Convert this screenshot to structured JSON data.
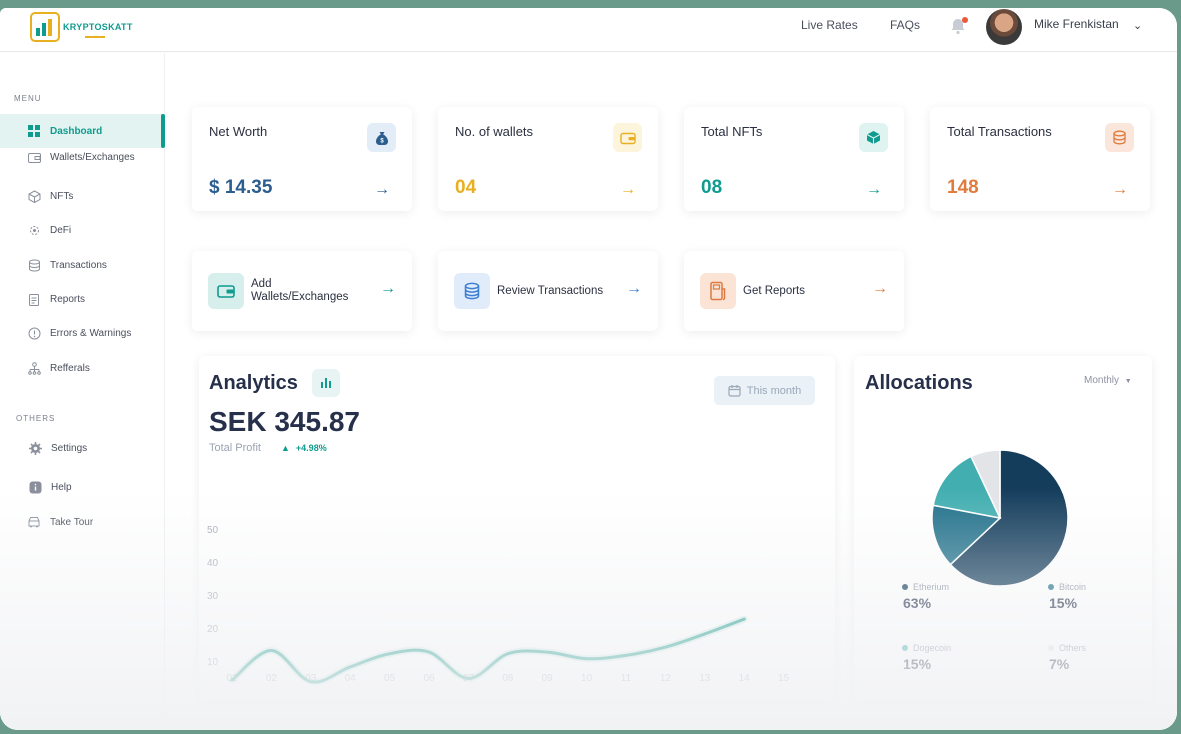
{
  "brand": {
    "name": "KRYPTOSKATT",
    "accent": "#0f9b8e",
    "gold": "#e8b020"
  },
  "topbar": {
    "links": [
      "Live Rates",
      "FAQs"
    ],
    "notifications_icon": "bell-icon",
    "user": {
      "name": "Mike Frenkistan"
    }
  },
  "sidebar": {
    "menu_label": "MENU",
    "others_label": "OTHERS",
    "menu_items": [
      {
        "label": "Dashboard",
        "icon": "grid-icon",
        "active": true
      },
      {
        "label": "Wallets/Exchanges",
        "icon": "wallet-icon"
      },
      {
        "label": "NFTs",
        "icon": "cube-icon"
      },
      {
        "label": "DeFi",
        "icon": "defi-icon"
      },
      {
        "label": "Transactions",
        "icon": "coins-icon"
      },
      {
        "label": "Reports",
        "icon": "report-icon"
      },
      {
        "label": "Errors & Warnings",
        "icon": "warning-icon"
      },
      {
        "label": "Refferals",
        "icon": "referral-icon"
      }
    ],
    "other_items": [
      {
        "label": "Settings",
        "icon": "gear-icon"
      },
      {
        "label": "Help",
        "icon": "help-icon"
      },
      {
        "label": "Take Tour",
        "icon": "tour-icon"
      }
    ]
  },
  "stats": [
    {
      "title": "Net Worth",
      "value": "$ 14.35",
      "color": "#2b5d8e",
      "icon": "money-bag-icon",
      "icon_bg": "#e3edf8"
    },
    {
      "title": "No. of wallets",
      "value": "04",
      "color": "#e8b020",
      "icon": "wallet-icon",
      "icon_bg": "#fdf4dc"
    },
    {
      "title": "Total NFTs",
      "value": "08",
      "color": "#0f9b8e",
      "icon": "cube-icon",
      "icon_bg": "#dff3f1"
    },
    {
      "title": "Total Transactions",
      "value": "148",
      "color": "#e07a3e",
      "icon": "coins-icon",
      "icon_bg": "#fbe6db"
    }
  ],
  "actions": [
    {
      "label_line1": "Add",
      "label_line2": "Wallets/Exchanges",
      "icon": "wallet-icon",
      "color": "#0f9b8e",
      "icon_bg": "#d6efec"
    },
    {
      "label_line1": "Review Transactions",
      "label_line2": "",
      "icon": "coins-icon",
      "color": "#3d7fd0",
      "icon_bg": "#e1ecfa"
    },
    {
      "label_line1": "Get Reports",
      "label_line2": "",
      "icon": "report-icon",
      "color": "#e07a3e",
      "icon_bg": "#fbe3d6"
    }
  ],
  "analytics": {
    "title": "Analytics",
    "range": "This month",
    "amount": "SEK 345.87",
    "subtitle": "Total Profit",
    "delta": "+4.98%"
  },
  "chart_data": {
    "type": "line",
    "x": [
      "01",
      "02",
      "03",
      "04",
      "05",
      "06",
      "07",
      "08",
      "09",
      "10",
      "11",
      "12",
      "13",
      "14",
      "15"
    ],
    "y_ticks": [
      10,
      20,
      30,
      40,
      50
    ],
    "ylim": [
      0,
      55
    ],
    "color": "#1a9c8c",
    "series": [
      {
        "values": [
          4.5,
          13.5,
          4,
          8.5,
          12.5,
          13,
          5,
          12.5,
          13,
          11,
          12,
          14.5,
          18.5,
          23,
          null
        ]
      }
    ]
  },
  "allocations": {
    "title": "Allocations",
    "period": "Monthly",
    "items": [
      {
        "name": "Etherium",
        "pct": "63%",
        "value": 63,
        "color": "#143d5c"
      },
      {
        "name": "Bitcoin",
        "pct": "15%",
        "value": 15,
        "color": "#20708a"
      },
      {
        "name": "Dogecoin",
        "pct": "15%",
        "value": 15,
        "color": "#42aeb0"
      },
      {
        "name": "Others",
        "pct": "7%",
        "value": 7,
        "color": "#e3e4e8"
      }
    ]
  }
}
